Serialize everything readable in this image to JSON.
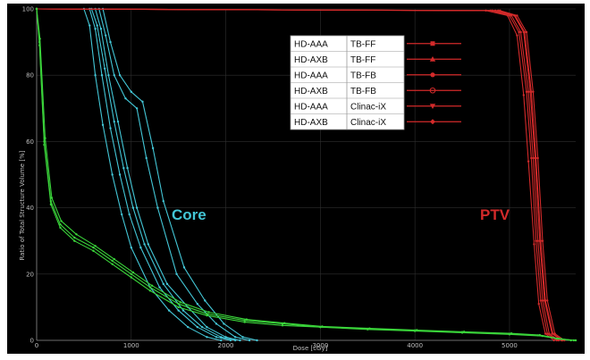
{
  "chart_data": {
    "type": "line",
    "title": "",
    "xlabel": "Dose [cGy]",
    "ylabel": "Ratio of Total Structure Volume [%]",
    "xlim": [
      0,
      5700
    ],
    "ylim": [
      0,
      100
    ],
    "x_ticks": [
      0,
      1000,
      2000,
      3000,
      4000,
      5000
    ],
    "y_ticks": [
      0,
      20,
      40,
      60,
      80,
      100
    ],
    "grid": true,
    "legend_position": "top-right",
    "legend": [
      {
        "model": "HD-AAA",
        "technique": "TB-FF",
        "marker": "square"
      },
      {
        "model": "HD-AXB",
        "technique": "TB-FF",
        "marker": "triangle-up"
      },
      {
        "model": "HD-AAA",
        "technique": "TB-FB",
        "marker": "circle"
      },
      {
        "model": "HD-AXB",
        "technique": "TB-FB",
        "marker": "circle-open"
      },
      {
        "model": "HD-AAA",
        "technique": "Clinac-iX",
        "marker": "triangle-down"
      },
      {
        "model": "HD-AXB",
        "technique": "Clinac-iX",
        "marker": "diamond"
      }
    ],
    "groups": [
      {
        "label": "Core",
        "color": "#43c6d6"
      },
      {
        "label": "PTV",
        "color": "#d22a2a"
      },
      {
        "label": "",
        "color": "#3ad43a"
      }
    ],
    "series": [
      {
        "group": "Core",
        "x": [
          0,
          500,
          560,
          620,
          700,
          800,
          900,
          1000,
          1200,
          1400,
          1600,
          1800,
          1950
        ],
        "y": [
          100,
          100,
          95,
          80,
          65,
          50,
          38,
          28,
          16,
          9,
          4,
          1,
          0
        ]
      },
      {
        "group": "Core",
        "x": [
          0,
          560,
          620,
          690,
          780,
          880,
          980,
          1100,
          1300,
          1500,
          1700,
          1900,
          2050
        ],
        "y": [
          100,
          100,
          94,
          80,
          64,
          50,
          38,
          28,
          16,
          9,
          4,
          1,
          0
        ]
      },
      {
        "group": "Core",
        "x": [
          0,
          620,
          680,
          760,
          860,
          960,
          1060,
          1180,
          1380,
          1600,
          1800,
          2000,
          2150
        ],
        "y": [
          100,
          100,
          94,
          80,
          66,
          52,
          40,
          29,
          17,
          10,
          4,
          1,
          0
        ]
      },
      {
        "group": "Core",
        "x": [
          0,
          660,
          730,
          820,
          940,
          1060,
          1160,
          1280,
          1480,
          1700,
          1900,
          2100,
          2250
        ],
        "y": [
          100,
          100,
          92,
          80,
          73,
          70,
          55,
          40,
          20,
          11,
          5,
          1,
          0
        ]
      },
      {
        "group": "Core",
        "x": [
          0,
          700,
          780,
          880,
          1000,
          1120,
          1230,
          1340,
          1560,
          1780,
          1980,
          2180,
          2330
        ],
        "y": [
          100,
          100,
          90,
          80,
          75,
          72,
          58,
          42,
          22,
          12,
          5,
          1,
          0
        ]
      },
      {
        "group": "Core",
        "x": [
          0,
          580,
          640,
          720,
          820,
          920,
          1020,
          1140,
          1340,
          1550,
          1750,
          1950,
          2100
        ],
        "y": [
          100,
          100,
          95,
          82,
          66,
          52,
          40,
          29,
          17,
          9,
          4,
          1,
          0
        ]
      },
      {
        "group": "PTV",
        "x": [
          0,
          4800,
          5000,
          5100,
          5180,
          5230,
          5280,
          5330,
          5400,
          5500
        ],
        "y": [
          100,
          99.5,
          98,
          93,
          75,
          55,
          30,
          12,
          2,
          0
        ]
      },
      {
        "group": "PTV",
        "x": [
          0,
          4850,
          5050,
          5150,
          5220,
          5270,
          5320,
          5370,
          5450,
          5550
        ],
        "y": [
          100,
          99.5,
          98,
          93,
          75,
          55,
          30,
          12,
          2,
          0
        ]
      },
      {
        "group": "PTV",
        "x": [
          0,
          4900,
          5080,
          5180,
          5250,
          5300,
          5350,
          5400,
          5480,
          5580
        ],
        "y": [
          100,
          99.5,
          98,
          93,
          75,
          55,
          30,
          12,
          2,
          0
        ]
      },
      {
        "group": "PTV",
        "x": [
          0,
          4750,
          4980,
          5080,
          5150,
          5200,
          5260,
          5310,
          5380,
          5470
        ],
        "y": [
          100,
          99.5,
          98,
          92,
          74,
          54,
          29,
          11,
          2,
          0
        ]
      },
      {
        "group": "PTV",
        "x": [
          0,
          4820,
          5020,
          5120,
          5200,
          5250,
          5300,
          5350,
          5420,
          5520
        ],
        "y": [
          100,
          99.5,
          98,
          93,
          75,
          55,
          30,
          12,
          2,
          0
        ]
      },
      {
        "group": "PTV",
        "x": [
          0,
          4880,
          5060,
          5160,
          5230,
          5280,
          5330,
          5380,
          5460,
          5560
        ],
        "y": [
          100,
          99.5,
          98,
          93,
          75,
          55,
          30,
          12,
          2,
          0
        ]
      },
      {
        "group": "",
        "x": [
          0,
          30,
          80,
          150,
          250,
          400,
          600,
          800,
          1000,
          1200,
          1500,
          1800,
          2200,
          2600,
          3000,
          3500,
          4000,
          4500,
          5000,
          5300,
          5500,
          5650
        ],
        "y": [
          100,
          90,
          60,
          42,
          35,
          31,
          28,
          24,
          20,
          16,
          11,
          8,
          6,
          5,
          4,
          3.5,
          3,
          2.5,
          2,
          1.5,
          0.5,
          0
        ]
      },
      {
        "group": "",
        "x": [
          0,
          30,
          80,
          150,
          250,
          400,
          600,
          800,
          1000,
          1200,
          1500,
          1800,
          2200,
          2600,
          3000,
          3500,
          4000,
          4500,
          5000,
          5350,
          5550,
          5700
        ],
        "y": [
          100,
          89,
          59,
          41,
          34,
          30,
          27,
          23,
          19,
          15,
          10,
          7.5,
          5.5,
          4.5,
          4,
          3.3,
          2.8,
          2.3,
          1.8,
          1.3,
          0.4,
          0
        ]
      },
      {
        "group": "",
        "x": [
          0,
          35,
          90,
          160,
          260,
          420,
          620,
          820,
          1020,
          1220,
          1520,
          1820,
          2220,
          2620,
          3020,
          3520,
          4020,
          4520,
          5020,
          5320,
          5520,
          5680
        ],
        "y": [
          100,
          91,
          61,
          43,
          36,
          32,
          28.5,
          24.5,
          20.5,
          16.5,
          11.5,
          8.5,
          6.3,
          5.2,
          4.2,
          3.6,
          3.1,
          2.6,
          2.1,
          1.6,
          0.5,
          0
        ]
      }
    ]
  }
}
